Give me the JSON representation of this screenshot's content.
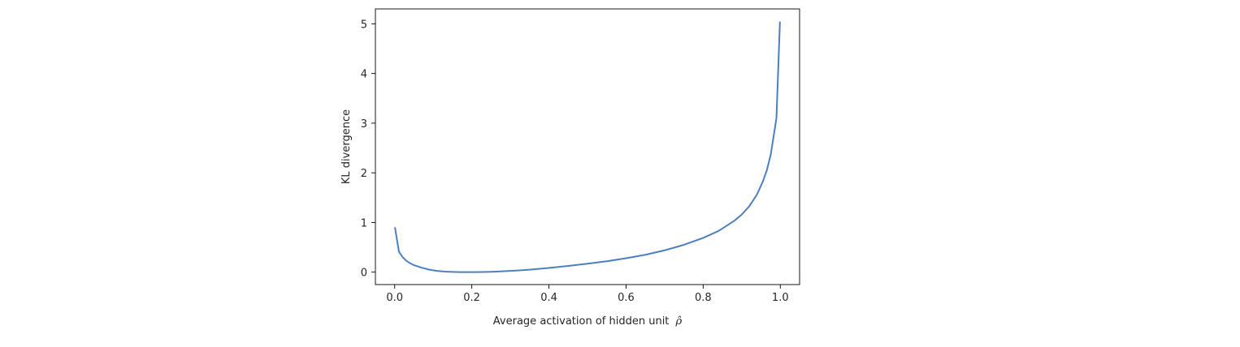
{
  "chart_data": {
    "type": "line",
    "title": "",
    "xlabel": "Average activation of hidden unit",
    "xlabel_math": "ρ̂",
    "ylabel": "KL divergence",
    "xlim": [
      -0.05,
      1.05
    ],
    "ylim": [
      -0.25,
      5.3
    ],
    "xticks": [
      0.0,
      0.2,
      0.4,
      0.6,
      0.8,
      1.0
    ],
    "xtick_labels": [
      "0.0",
      "0.2",
      "0.4",
      "0.6",
      "0.8",
      "1.0"
    ],
    "yticks": [
      0,
      1,
      2,
      3,
      4,
      5
    ],
    "ytick_labels": [
      "0",
      "1",
      "2",
      "3",
      "4",
      "5"
    ],
    "grid": false,
    "line_color": "#4c7fbf",
    "series": [
      {
        "x": [
          0.001,
          0.011,
          0.021,
          0.03,
          0.04,
          0.05,
          0.07,
          0.09,
          0.11,
          0.13,
          0.15,
          0.17,
          0.2,
          0.23,
          0.26,
          0.3,
          0.35,
          0.4,
          0.45,
          0.5,
          0.55,
          0.6,
          0.65,
          0.7,
          0.75,
          0.8,
          0.84,
          0.88,
          0.9,
          0.92,
          0.94,
          0.955,
          0.965,
          0.975,
          0.985,
          0.99,
          0.999
        ],
        "y": [
          0.89,
          0.41,
          0.3,
          0.23,
          0.18,
          0.14,
          0.09,
          0.05,
          0.025,
          0.012,
          0.005,
          0.001,
          0.0,
          0.003,
          0.01,
          0.025,
          0.05,
          0.085,
          0.125,
          0.17,
          0.22,
          0.28,
          0.35,
          0.44,
          0.55,
          0.69,
          0.83,
          1.03,
          1.16,
          1.33,
          1.57,
          1.83,
          2.05,
          2.36,
          2.85,
          3.1,
          5.03
        ]
      }
    ]
  }
}
